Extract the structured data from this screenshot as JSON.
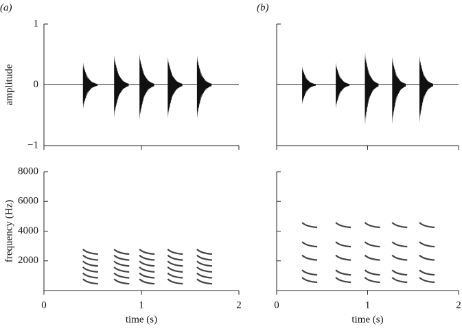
{
  "chart_data": [
    {
      "type": "waveform",
      "label": "(a)",
      "ylabel": "amplitude",
      "xlim": [
        0,
        2
      ],
      "ylim": [
        -1,
        1
      ],
      "yticks": [
        {
          "value": -1,
          "label": "−1"
        },
        0,
        1
      ],
      "x": [
        0.4,
        0.72,
        0.98,
        1.27,
        1.57
      ],
      "peaks": [
        0.4,
        0.53,
        0.55,
        0.5,
        0.52
      ],
      "troughs": [
        -0.43,
        -0.58,
        -0.63,
        -0.6,
        -0.6
      ]
    },
    {
      "type": "waveform",
      "label": "(b)",
      "xlim": [
        0,
        2
      ],
      "ylim": [
        -1,
        1
      ],
      "x": [
        0.28,
        0.65,
        0.97,
        1.27,
        1.57
      ],
      "peaks": [
        0.33,
        0.4,
        0.58,
        0.5,
        0.52
      ],
      "troughs": [
        -0.35,
        -0.42,
        -0.72,
        -0.7,
        -0.68
      ]
    },
    {
      "type": "spectrogram",
      "ylabel": "frequency (Hz)",
      "xlabel": "time (s)",
      "xlim": [
        0,
        2
      ],
      "ylim": [
        0,
        8000
      ],
      "xticks": [
        0,
        1,
        2
      ],
      "yticks": [
        2000,
        4000,
        6000,
        8000
      ],
      "x": [
        0.4,
        0.72,
        0.98,
        1.27,
        1.57
      ],
      "harmonics": [
        500,
        900,
        1300,
        1700,
        2100,
        2500
      ]
    },
    {
      "type": "spectrogram",
      "xlabel": "time (s)",
      "xlim": [
        0,
        2
      ],
      "ylim": [
        0,
        8000
      ],
      "xticks": [
        0,
        1,
        2
      ],
      "x": [
        0.28,
        0.65,
        0.97,
        1.27,
        1.57
      ],
      "harmonics": [
        600,
        1100,
        2100,
        3000,
        4300
      ]
    }
  ]
}
